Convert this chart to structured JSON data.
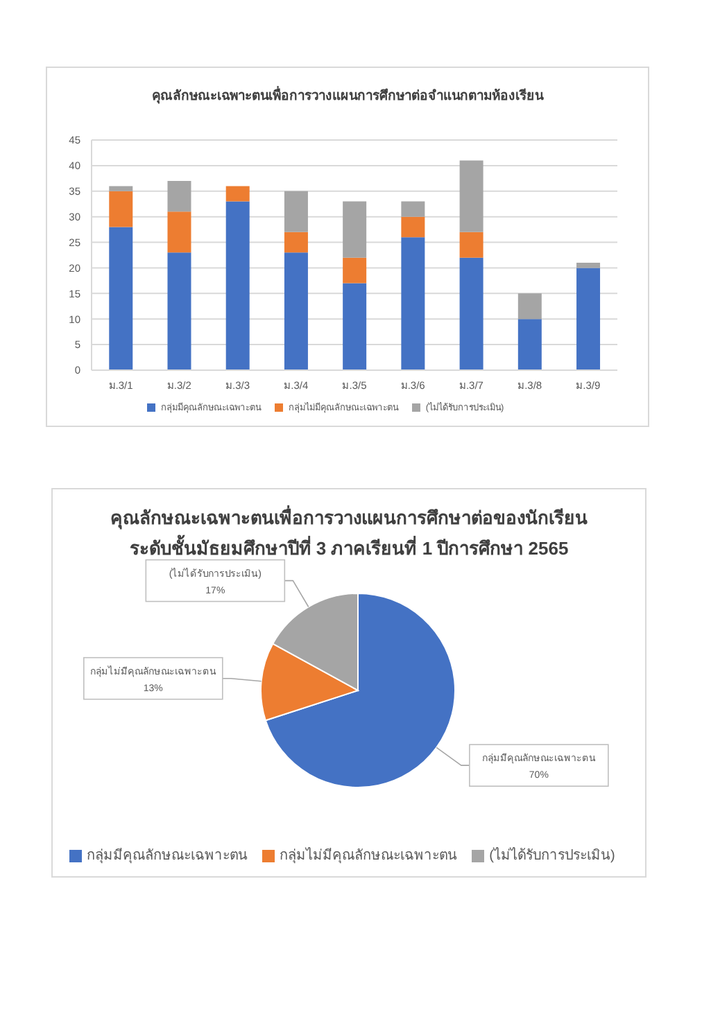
{
  "chart_data": [
    {
      "type": "bar",
      "title": "คุณลักษณะเฉพาะตนเพื่อการวางแผนการศึกษาต่อจำแนกตามห้องเรียน",
      "categories": [
        "ม.3/1",
        "ม.3/2",
        "ม.3/3",
        "ม.3/4",
        "ม.3/5",
        "ม.3/6",
        "ม.3/7",
        "ม.3/8",
        "ม.3/9"
      ],
      "series": [
        {
          "name": "กลุ่มมีคุณลักษณะเฉพาะตน",
          "color": "#4472c4",
          "values": [
            28,
            23,
            33,
            23,
            17,
            26,
            22,
            10,
            20
          ]
        },
        {
          "name": "กลุ่มไม่มีคุณลักษณะเฉพาะตน",
          "color": "#ed7d31",
          "values": [
            7,
            8,
            3,
            4,
            5,
            4,
            5,
            0,
            0
          ]
        },
        {
          "name": "(ไม่ได้รับการประเมิน)",
          "color": "#a5a5a5",
          "values": [
            1,
            6,
            0,
            8,
            11,
            3,
            14,
            5,
            1
          ]
        }
      ],
      "stacked": true,
      "ylim": [
        0,
        45
      ],
      "yticks": [
        0,
        5,
        10,
        15,
        20,
        25,
        30,
        35,
        40,
        45
      ],
      "grid": "y",
      "legend": "bottom"
    },
    {
      "type": "pie",
      "title": "คุณลักษณะเฉพาะตนเพื่อการวางแผนการศึกษาต่อของนักเรียน",
      "subtitle": "ระดับชั้นมัธยมศึกษาปีที่ 3 ภาคเรียนที่ 1 ปีการศึกษา 2565",
      "categories": [
        "กลุ่มมีคุณลักษณะเฉพาะตน",
        "กลุ่มไม่มีคุณลักษณะเฉพาะตน",
        "(ไม่ได้รับการประเมิน)"
      ],
      "values": [
        70,
        13,
        17
      ],
      "colors": [
        "#4472c4",
        "#ed7d31",
        "#a5a5a5"
      ],
      "value_labels": [
        "70%",
        "13%",
        "17%"
      ],
      "legend": "bottom"
    }
  ]
}
